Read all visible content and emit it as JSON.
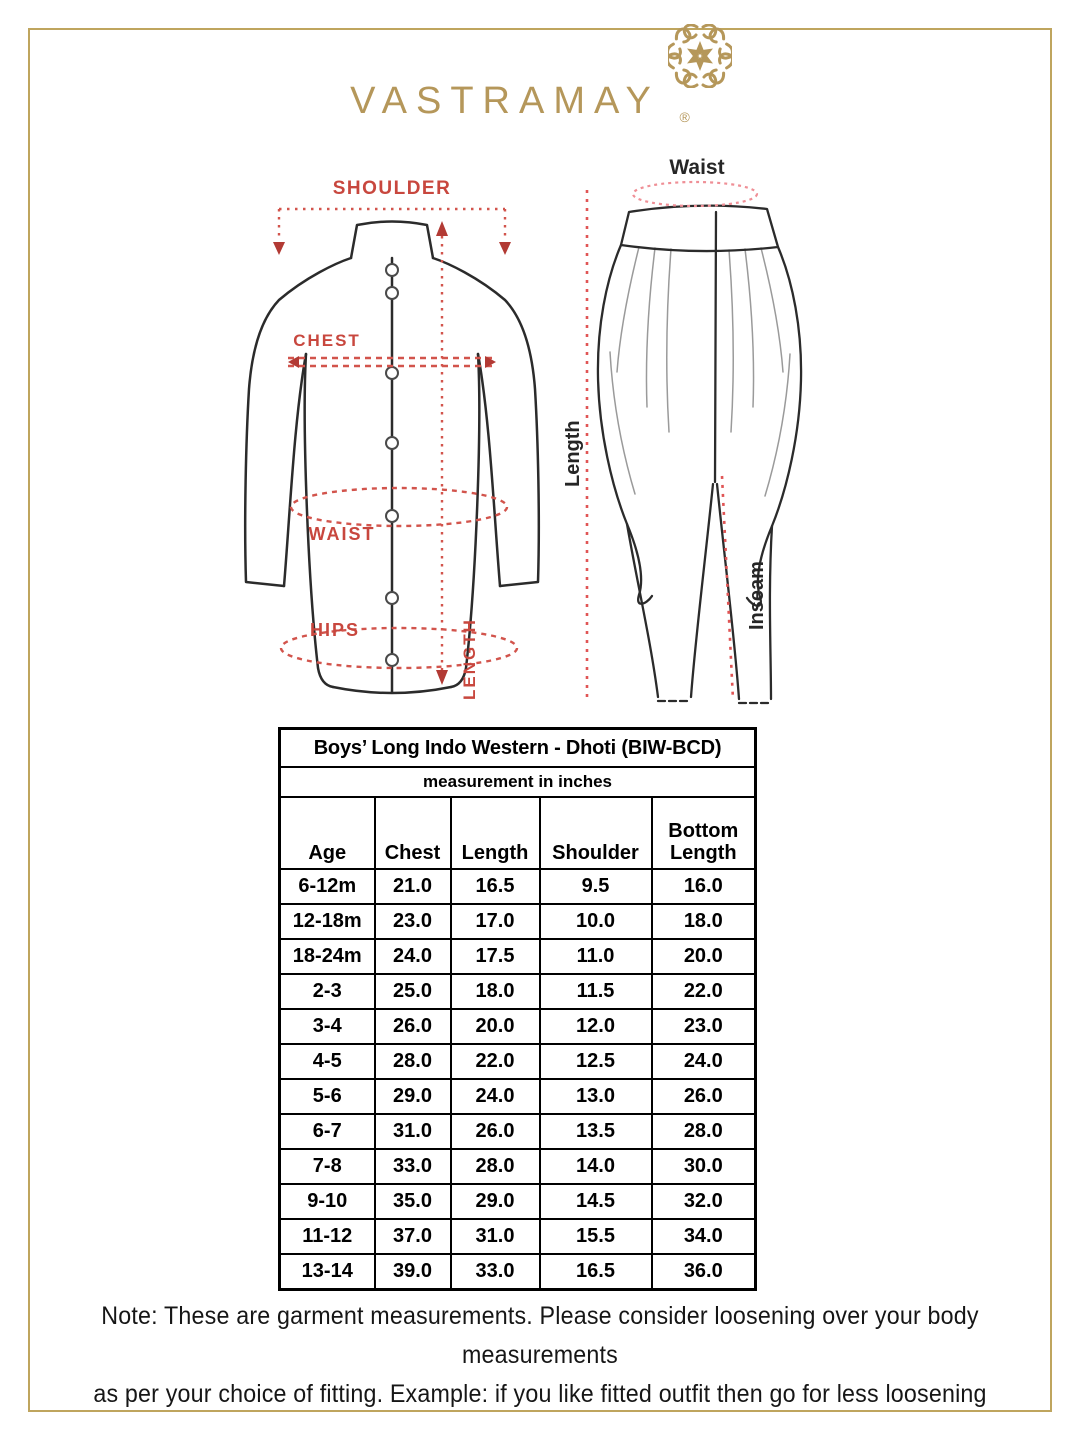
{
  "brand": {
    "name": "VASTRAMAY",
    "registered_mark": "®"
  },
  "kurta_diagram": {
    "shoulder_label": "SHOULDER",
    "chest_label": "CHEST",
    "waist_label": "WAIST",
    "hips_label": "HIPS",
    "length_label": "LENGTH"
  },
  "dhoti_diagram": {
    "waist_label": "Waist",
    "length_label": "Length",
    "inseam_label": "Inseam"
  },
  "size_table": {
    "title": "Boys’ Long Indo Western - Dhoti (BIW-BCD)",
    "subtitle": "measurement in inches",
    "columns": [
      "Age",
      "Chest",
      "Length",
      "Shoulder",
      "Bottom Length"
    ],
    "rows": [
      [
        "6-12m",
        "21.0",
        "16.5",
        "9.5",
        "16.0"
      ],
      [
        "12-18m",
        "23.0",
        "17.0",
        "10.0",
        "18.0"
      ],
      [
        "18-24m",
        "24.0",
        "17.5",
        "11.0",
        "20.0"
      ],
      [
        "2-3",
        "25.0",
        "18.0",
        "11.5",
        "22.0"
      ],
      [
        "3-4",
        "26.0",
        "20.0",
        "12.0",
        "23.0"
      ],
      [
        "4-5",
        "28.0",
        "22.0",
        "12.5",
        "24.0"
      ],
      [
        "5-6",
        "29.0",
        "24.0",
        "13.0",
        "26.0"
      ],
      [
        "6-7",
        "31.0",
        "26.0",
        "13.5",
        "28.0"
      ],
      [
        "7-8",
        "33.0",
        "28.0",
        "14.0",
        "30.0"
      ],
      [
        "9-10",
        "35.0",
        "29.0",
        "14.5",
        "32.0"
      ],
      [
        "11-12",
        "37.0",
        "31.0",
        "15.5",
        "34.0"
      ],
      [
        "13-14",
        "39.0",
        "33.0",
        "16.5",
        "36.0"
      ]
    ]
  },
  "note": {
    "line1": "Note: These are garment measurements. Please consider loosening over your body measurements",
    "line2": "as per your choice of fitting. Example: if you like fitted outfit then go for less loosening"
  },
  "colors": {
    "frame_gold": "#bfa55e",
    "logo_gold": "#b5975a",
    "annotation_red": "#c8473e",
    "dash_red": "#d2544c",
    "dash_pink": "#ef8f96",
    "line_dark": "#2b2b2b",
    "table_border": "#000000"
  }
}
